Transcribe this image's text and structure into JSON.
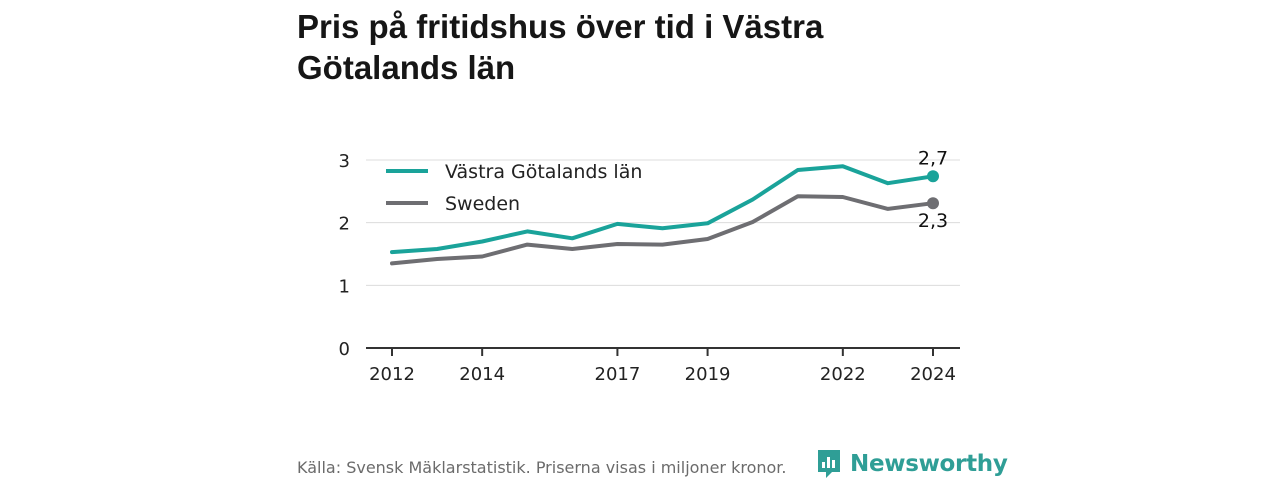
{
  "title": "Pris på fritidshus över tid i Västra Götalands län",
  "footer": {
    "source": "Källa: Svensk Mäklarstatistik. Priserna visas i miljoner kronor.",
    "brand": "Newsworthy"
  },
  "colors": {
    "series_primary": "#1aa39a",
    "series_secondary": "#6e6e72",
    "brand": "#2f9e96"
  },
  "chart_data": {
    "type": "line",
    "x": [
      2012,
      2013,
      2014,
      2015,
      2016,
      2017,
      2018,
      2019,
      2020,
      2021,
      2022,
      2023,
      2024
    ],
    "xticks": [
      "2012",
      "2014",
      "2017",
      "2019",
      "2022",
      "2024"
    ],
    "yticks": [
      "0",
      "1",
      "2",
      "3"
    ],
    "ylim": [
      0,
      3
    ],
    "grid": true,
    "legend_position": "top-left",
    "series": [
      {
        "name": "Västra Götalands län",
        "values": [
          1.53,
          1.58,
          1.7,
          1.86,
          1.75,
          1.98,
          1.91,
          1.99,
          2.37,
          2.84,
          2.9,
          2.63,
          2.74
        ],
        "end_label": "2,7"
      },
      {
        "name": "Sweden",
        "values": [
          1.35,
          1.42,
          1.46,
          1.65,
          1.58,
          1.66,
          1.65,
          1.74,
          2.01,
          2.42,
          2.41,
          2.22,
          2.31
        ],
        "end_label": "2,3"
      }
    ]
  }
}
